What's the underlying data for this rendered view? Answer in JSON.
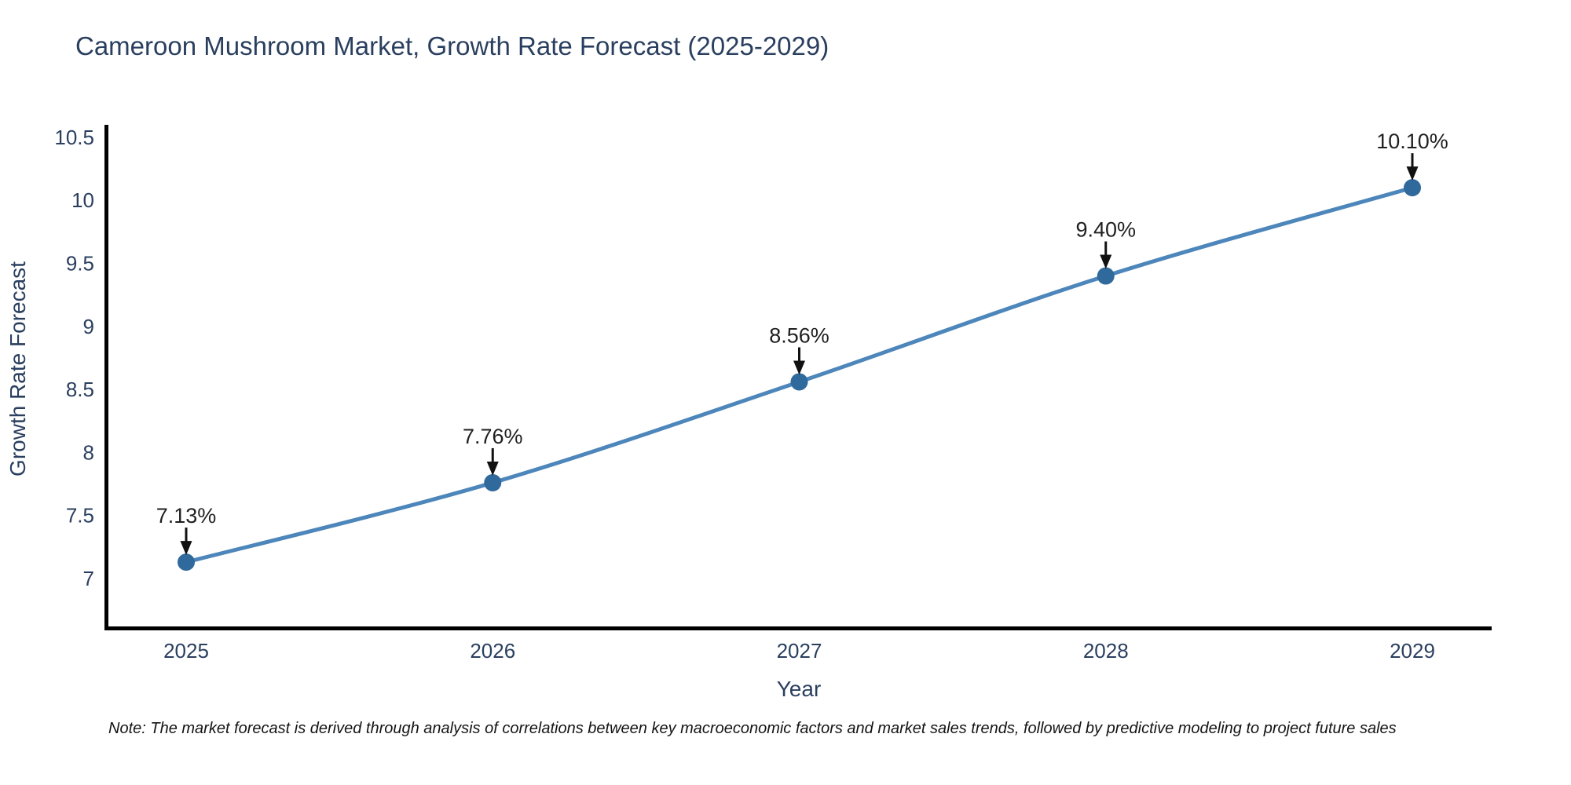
{
  "title": "Cameroon Mushroom Market, Growth Rate Forecast (2025-2029)",
  "note": "Note: The market forecast is derived through analysis of correlations between key macroeconomic factors and market sales trends, followed by predictive modeling to project future sales",
  "chart_data": {
    "type": "line",
    "x": [
      "2025",
      "2026",
      "2027",
      "2028",
      "2029"
    ],
    "values": [
      7.13,
      7.76,
      8.56,
      9.4,
      10.1
    ],
    "point_labels": [
      "7.13%",
      "7.76%",
      "8.56%",
      "9.40%",
      "10.10%"
    ],
    "xlabel": "Year",
    "ylabel": "Growth Rate Forecast",
    "yticks": [
      "7",
      "7.5",
      "8",
      "8.5",
      "9",
      "9.5",
      "10",
      "10.5"
    ],
    "ylim": [
      6.6,
      10.85
    ],
    "grid": false,
    "legend": "none",
    "line_color": "#4d86ba",
    "marker_color": "#30699c",
    "axis_color": "#000000",
    "tick_color": "#2a3f5f",
    "annotation_color": "#1f1f1f",
    "background_color": "#ffffff"
  }
}
